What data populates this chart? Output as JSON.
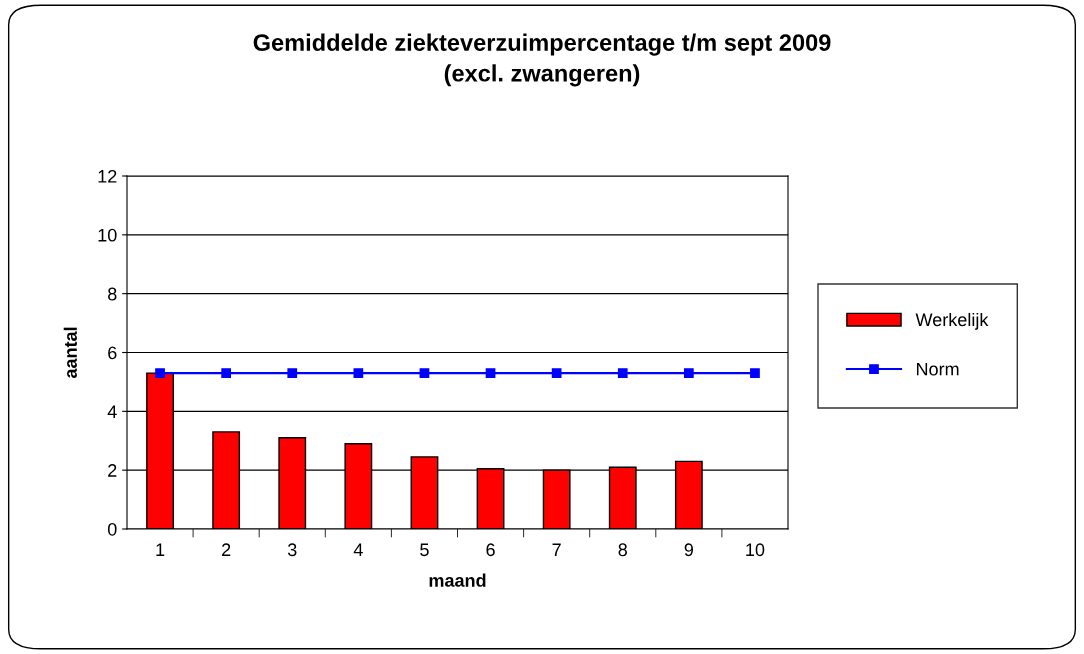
{
  "chart_data": {
    "type": "bar",
    "title": "Gemiddelde ziekteverzuimpercentage t/m sept 2009\n(excl. zwangeren)",
    "xlabel": "maand",
    "ylabel": "aantal",
    "categories": [
      "1",
      "2",
      "3",
      "4",
      "5",
      "6",
      "7",
      "8",
      "9",
      "10"
    ],
    "series": [
      {
        "name": "Werkelijk",
        "color": "#ff0000",
        "values": [
          5.3,
          3.3,
          3.1,
          2.9,
          2.45,
          2.05,
          2.0,
          2.1,
          2.3,
          null
        ]
      },
      {
        "name": "Norm",
        "type": "line",
        "color": "#0000ff",
        "marker": "square",
        "values": [
          5.3,
          5.3,
          5.3,
          5.3,
          5.3,
          5.3,
          5.3,
          5.3,
          5.3,
          5.3
        ]
      }
    ],
    "ylim": [
      0,
      12
    ],
    "yticks": [
      0,
      2,
      4,
      6,
      8,
      10,
      12
    ],
    "grid": "y",
    "legend": "right"
  }
}
